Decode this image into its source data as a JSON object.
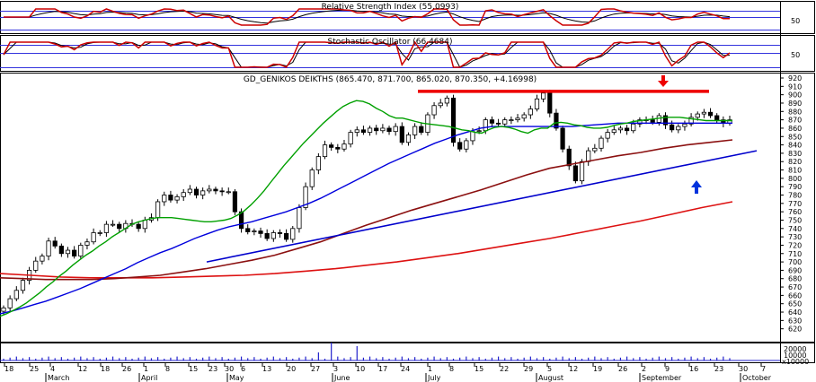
{
  "colors": {
    "rsi_line": "#cc0000",
    "rsi_signal": "#000000",
    "stoch_k": "#cc0000",
    "stoch_d": "#000000",
    "ma_short": "#00a000",
    "ma_mid": "#0000dd",
    "ma_long": "#8b1010",
    "ma_longest": "#dd1111",
    "trend_support": "#0000cc",
    "resistance": "#ee0000",
    "arrow_down": "#ee0000",
    "arrow_up": "#0033dd",
    "guide_lines": "#3333dd",
    "volume": "#2222cc"
  },
  "rsi_panel": {
    "title": "Relative Strength Index (55.0993)",
    "level_label": "50"
  },
  "stoch_panel": {
    "title": "Stochastic Oscillator (66.4684)",
    "level_label": "50"
  },
  "price_panel": {
    "title": "GD_GENIKOS DEIKTHS (865.470, 871.700, 865.020, 870.350, +4.16998)"
  },
  "volume_panel": {
    "labels": [
      "20000",
      "10000",
      "x10000"
    ]
  },
  "chart_data": {
    "type": "candlestick",
    "title": "GD_GENIKOS DEIKTHS (865.470, 871.700, 865.020, 870.350, +4.16998)",
    "ylim": [
      610,
      920
    ],
    "y_ticks": [
      620,
      630,
      640,
      650,
      660,
      670,
      680,
      690,
      700,
      710,
      720,
      730,
      740,
      750,
      760,
      770,
      780,
      790,
      800,
      810,
      820,
      830,
      840,
      850,
      860,
      870,
      880,
      890,
      900,
      910,
      920
    ],
    "x_tick_labels": [
      "18",
      "25",
      "4",
      "12",
      "18",
      "26",
      "1",
      "8",
      "15",
      "23",
      "30",
      "6",
      "13",
      "20",
      "27",
      "3",
      "10",
      "17",
      "24",
      "1",
      "8",
      "15",
      "22",
      "29",
      "5",
      "12",
      "19",
      "26",
      "2",
      "9",
      "16",
      "23",
      "30",
      "7"
    ],
    "months": [
      "March",
      "April",
      "May",
      "June",
      "July",
      "August",
      "September",
      "October"
    ],
    "last_ohlc": {
      "open": 865.47,
      "high": 871.7,
      "low": 865.02,
      "close": 870.35,
      "change": 4.16998
    },
    "closes": [
      645,
      656,
      666,
      678,
      690,
      701,
      707,
      725,
      719,
      710,
      714,
      707,
      720,
      724,
      735,
      735,
      745,
      745,
      740,
      746,
      745,
      740,
      750,
      753,
      772,
      780,
      774,
      778,
      783,
      787,
      780,
      785,
      787,
      785,
      784,
      784,
      760,
      740,
      736,
      737,
      734,
      728,
      735,
      734,
      727,
      740,
      765,
      790,
      810,
      826,
      840,
      837,
      835,
      841,
      855,
      858,
      855,
      860,
      857,
      860,
      856,
      862,
      843,
      852,
      862,
      855,
      876,
      887,
      890,
      896,
      843,
      835,
      845,
      856,
      857,
      870,
      866,
      865,
      870,
      870,
      872,
      876,
      883,
      895,
      902,
      878,
      860,
      835,
      815,
      797,
      820,
      833,
      836,
      848,
      855,
      858,
      860,
      857,
      865,
      870,
      870,
      867,
      875,
      864,
      858,
      862,
      865,
      873,
      877,
      879,
      875,
      870,
      866,
      870
    ],
    "series": [
      {
        "name": "MA short",
        "values": [
          635,
          638,
          642,
          646,
          651,
          657,
          663,
          670,
          676,
          683,
          689,
          696,
          702,
          708,
          713,
          719,
          724,
          730,
          735,
          740,
          745,
          748,
          750,
          752,
          753,
          753,
          753,
          752,
          751,
          750,
          749,
          748,
          748,
          749,
          750,
          752,
          756,
          761,
          768,
          776,
          785,
          795,
          805,
          815,
          824,
          833,
          842,
          850,
          858,
          866,
          873,
          880,
          886,
          890,
          893,
          892,
          889,
          884,
          880,
          875,
          872,
          872,
          870,
          868,
          866,
          865,
          864,
          863,
          862,
          860,
          858,
          857,
          855,
          854,
          858,
          861,
          862,
          861,
          859,
          856,
          854,
          858,
          860,
          860,
          866,
          867,
          866,
          864,
          863,
          861,
          860,
          860,
          861,
          863,
          865,
          866,
          868,
          869,
          870,
          871,
          872,
          873,
          873,
          873,
          872,
          871,
          870,
          869,
          869,
          869,
          869,
          869
        ]
      },
      {
        "name": "MA mid",
        "values": [
          638,
          641,
          645,
          649,
          653,
          658,
          663,
          668,
          674,
          680,
          686,
          692,
          699,
          705,
          711,
          716,
          722,
          728,
          733,
          738,
          742,
          745,
          748,
          752,
          756,
          760,
          765,
          770,
          776,
          783,
          790,
          797,
          804,
          811,
          818,
          824,
          830,
          836,
          842,
          847,
          852,
          856,
          860,
          862,
          862,
          862,
          862,
          862,
          862,
          862,
          862,
          863,
          864,
          865,
          866,
          866,
          866,
          866,
          866,
          866,
          866,
          866,
          866,
          866,
          866
        ]
      },
      {
        "name": "MA long",
        "values": [
          681,
          680,
          679,
          679,
          679,
          680,
          682,
          684,
          688,
          692,
          697,
          702,
          708,
          716,
          724,
          734,
          744,
          753,
          762,
          770,
          778,
          786,
          795,
          804,
          812,
          817,
          822,
          827,
          831,
          836,
          840,
          843,
          846
        ]
      },
      {
        "name": "MA longest",
        "values": [
          686,
          684,
          682,
          681,
          681,
          681,
          682,
          683,
          684,
          686,
          689,
          692,
          696,
          700,
          705,
          710,
          716,
          722,
          728,
          735,
          742,
          749,
          757,
          765,
          772
        ]
      }
    ],
    "annotations": [
      {
        "type": "horizontal_resistance",
        "y": 904,
        "from": "July",
        "to": "September"
      },
      {
        "type": "support_trendline",
        "y_start": 700,
        "y_end": 833
      },
      {
        "type": "arrow_down",
        "near": 910
      },
      {
        "type": "arrow_up",
        "near": 800
      }
    ]
  }
}
